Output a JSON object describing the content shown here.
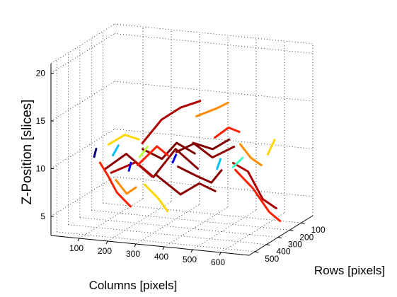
{
  "chart_data": {
    "type": "line3d",
    "xlabel": "Columns [pixels]",
    "ylabel": "Rows [pixels]",
    "zlabel": "Z-Position [slices]",
    "x_ticks": [
      "100",
      "200",
      "300",
      "400",
      "500",
      "600"
    ],
    "y_ticks": [
      "100",
      "200",
      "300",
      "400",
      "500"
    ],
    "z_ticks": [
      "5",
      "10",
      "15",
      "20"
    ],
    "xlim": [
      0,
      700
    ],
    "ylim": [
      0,
      550
    ],
    "zlim": [
      3,
      21
    ],
    "grid": true,
    "colormap": [
      "#00007f",
      "#0000ff",
      "#00bfff",
      "#40ffbf",
      "#bfff40",
      "#ffd700",
      "#ff8c00",
      "#ff2000",
      "#b00000",
      "#7f0000"
    ],
    "series": [
      {
        "color": "#8b0000",
        "points": [
          [
            120,
            380,
            9
          ],
          [
            180,
            340,
            10.5
          ],
          [
            260,
            300,
            8
          ],
          [
            330,
            280,
            11
          ],
          [
            400,
            260,
            9
          ]
        ]
      },
      {
        "color": "#b00000",
        "points": [
          [
            200,
            250,
            11
          ],
          [
            260,
            230,
            13.5
          ],
          [
            320,
            210,
            14.8
          ],
          [
            380,
            190,
            15.5
          ]
        ]
      },
      {
        "color": "#ff8c00",
        "points": [
          [
            350,
            150,
            13.5
          ],
          [
            420,
            140,
            14.5
          ],
          [
            450,
            120,
            15
          ]
        ]
      },
      {
        "color": "#ffd700",
        "points": [
          [
            150,
            420,
            12
          ],
          [
            200,
            400,
            13
          ],
          [
            240,
            380,
            12.5
          ]
        ]
      },
      {
        "color": "#ff2000",
        "points": [
          [
            120,
            420,
            10
          ],
          [
            160,
            450,
            9
          ],
          [
            200,
            470,
            7.5
          ],
          [
            240,
            450,
            6
          ]
        ]
      },
      {
        "color": "#8b0000",
        "points": [
          [
            300,
            380,
            9
          ],
          [
            380,
            360,
            7
          ],
          [
            430,
            320,
            8
          ],
          [
            470,
            280,
            7
          ]
        ]
      },
      {
        "color": "#b00000",
        "points": [
          [
            480,
            150,
            9
          ],
          [
            520,
            120,
            8
          ],
          [
            560,
            90,
            5
          ],
          [
            600,
            70,
            4
          ]
        ]
      },
      {
        "color": "#ff2000",
        "points": [
          [
            520,
            230,
            9
          ],
          [
            570,
            200,
            7
          ],
          [
            620,
            180,
            4.5
          ],
          [
            650,
            160,
            3.5
          ]
        ]
      },
      {
        "color": "#8b0000",
        "points": [
          [
            400,
            300,
            12
          ],
          [
            460,
            280,
            10.5
          ],
          [
            520,
            240,
            11.5
          ]
        ]
      },
      {
        "color": "#ffd700",
        "points": [
          [
            270,
            400,
            8
          ],
          [
            310,
            380,
            6.5
          ],
          [
            330,
            350,
            5
          ]
        ]
      },
      {
        "color": "#ff8c00",
        "points": [
          [
            550,
            260,
            12
          ],
          [
            580,
            240,
            10.5
          ],
          [
            600,
            200,
            9.5
          ]
        ]
      },
      {
        "color": "#7f0000",
        "points": [
          [
            230,
            320,
            11
          ],
          [
            290,
            300,
            10
          ],
          [
            350,
            320,
            12
          ],
          [
            410,
            310,
            11
          ]
        ]
      },
      {
        "color": "#b00000",
        "points": [
          [
            180,
            470,
            9.5
          ],
          [
            250,
            430,
            10.5
          ],
          [
            300,
            410,
            9
          ]
        ]
      },
      {
        "color": "#ff2000",
        "points": [
          [
            440,
            210,
            12
          ],
          [
            480,
            190,
            13
          ],
          [
            510,
            170,
            12.5
          ]
        ]
      },
      {
        "color": "#8b0000",
        "points": [
          [
            330,
            260,
            9
          ],
          [
            380,
            230,
            8
          ],
          [
            440,
            240,
            7.5
          ],
          [
            480,
            250,
            9
          ]
        ]
      },
      {
        "color": "#ff8c00",
        "points": [
          [
            160,
            380,
            8
          ],
          [
            190,
            360,
            6.5
          ],
          [
            210,
            330,
            7
          ]
        ]
      },
      {
        "color": "#bfff40",
        "points": [
          [
            260,
            420,
            11
          ],
          [
            280,
            400,
            12
          ]
        ]
      },
      {
        "color": "#40ffbf",
        "points": [
          [
            500,
            200,
            9
          ],
          [
            530,
            190,
            10
          ]
        ]
      },
      {
        "color": "#00bfff",
        "points": [
          [
            170,
            430,
            11
          ],
          [
            185,
            420,
            12
          ]
        ]
      },
      {
        "color": "#0000ff",
        "points": [
          [
            340,
            330,
            10
          ],
          [
            350,
            325,
            10.8
          ]
        ]
      },
      {
        "color": "#0000ff",
        "points": [
          [
            210,
            390,
            9.2
          ],
          [
            215,
            385,
            10
          ]
        ]
      },
      {
        "color": "#00007f",
        "points": [
          [
            120,
            470,
            11
          ],
          [
            125,
            465,
            11.8
          ]
        ]
      },
      {
        "color": "#00bfff",
        "points": [
          [
            460,
            240,
            9
          ],
          [
            470,
            235,
            10
          ]
        ]
      },
      {
        "color": "#ffd700",
        "points": [
          [
            590,
            120,
            10
          ],
          [
            610,
            110,
            11.5
          ]
        ]
      },
      {
        "color": "#7f0000",
        "points": [
          [
            300,
            200,
            10
          ],
          [
            360,
            190,
            11
          ],
          [
            420,
            180,
            10.5
          ],
          [
            470,
            160,
            11.5
          ]
        ]
      },
      {
        "color": "#ff2000",
        "points": [
          [
            200,
            290,
            9
          ],
          [
            260,
            270,
            11
          ],
          [
            290,
            250,
            10
          ]
        ]
      }
    ]
  }
}
